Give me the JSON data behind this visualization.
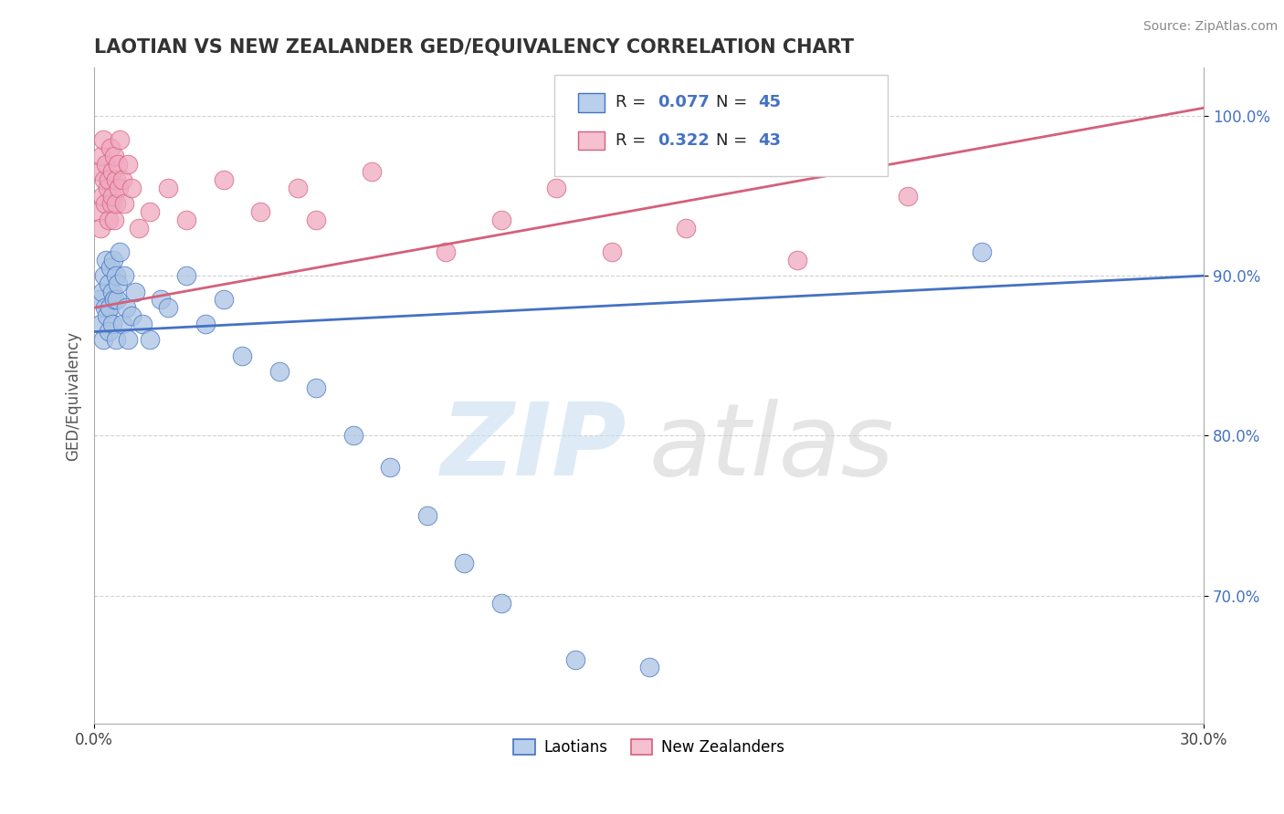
{
  "title": "LAOTIAN VS NEW ZEALANDER GED/EQUIVALENCY CORRELATION CHART",
  "source": "Source: ZipAtlas.com",
  "ylabel": "GED/Equivalency",
  "xlim": [
    0.0,
    30.0
  ],
  "ylim": [
    62.0,
    103.0
  ],
  "yticks": [
    70.0,
    80.0,
    90.0,
    100.0
  ],
  "ytick_labels": [
    "70.0%",
    "80.0%",
    "90.0%",
    "100.0%"
  ],
  "laotian_color": "#aac4e4",
  "new_zealander_color": "#f0a8c0",
  "laotian_line_color": "#4472c4",
  "new_zealander_line_color": "#d4607a",
  "legend_box_lao": "#b8d0ec",
  "legend_box_nz": "#f5c0d0",
  "R_laotian": 0.077,
  "N_laotian": 45,
  "R_nz": 0.322,
  "N_nz": 43,
  "lao_trend_x0": 0.0,
  "lao_trend_y0": 86.5,
  "lao_trend_x1": 30.0,
  "lao_trend_y1": 90.0,
  "nz_trend_x0": 0.0,
  "nz_trend_y0": 88.0,
  "nz_trend_x1": 30.0,
  "nz_trend_y1": 100.5,
  "laotian_x": [
    0.15,
    0.18,
    0.22,
    0.25,
    0.28,
    0.3,
    0.32,
    0.35,
    0.38,
    0.4,
    0.42,
    0.45,
    0.48,
    0.5,
    0.52,
    0.55,
    0.58,
    0.6,
    0.62,
    0.65,
    0.7,
    0.75,
    0.8,
    0.85,
    0.9,
    1.0,
    1.1,
    1.3,
    1.5,
    1.8,
    2.0,
    2.5,
    3.0,
    3.5,
    4.0,
    5.0,
    6.0,
    7.0,
    8.0,
    9.0,
    10.0,
    11.0,
    13.0,
    15.0,
    24.0
  ],
  "laotian_y": [
    88.5,
    87.0,
    89.0,
    86.0,
    90.0,
    88.0,
    91.0,
    87.5,
    89.5,
    86.5,
    88.0,
    90.5,
    87.0,
    89.0,
    91.0,
    88.5,
    86.0,
    90.0,
    88.5,
    89.5,
    91.5,
    87.0,
    90.0,
    88.0,
    86.0,
    87.5,
    89.0,
    87.0,
    86.0,
    88.5,
    88.0,
    90.0,
    87.0,
    88.5,
    85.0,
    84.0,
    83.0,
    80.0,
    78.0,
    75.0,
    72.0,
    69.5,
    66.0,
    65.5,
    91.5
  ],
  "nz_x": [
    0.12,
    0.15,
    0.18,
    0.2,
    0.22,
    0.25,
    0.28,
    0.3,
    0.33,
    0.36,
    0.38,
    0.4,
    0.43,
    0.46,
    0.48,
    0.5,
    0.53,
    0.55,
    0.58,
    0.6,
    0.63,
    0.66,
    0.7,
    0.75,
    0.8,
    0.9,
    1.0,
    1.2,
    1.5,
    2.0,
    2.5,
    3.5,
    4.5,
    5.5,
    6.0,
    7.5,
    9.5,
    11.0,
    12.5,
    14.0,
    16.0,
    19.0,
    22.0
  ],
  "nz_y": [
    94.0,
    96.5,
    93.0,
    97.5,
    95.0,
    98.5,
    96.0,
    94.5,
    97.0,
    95.5,
    93.5,
    96.0,
    98.0,
    94.5,
    96.5,
    95.0,
    97.5,
    93.5,
    96.0,
    94.5,
    97.0,
    95.5,
    98.5,
    96.0,
    94.5,
    97.0,
    95.5,
    93.0,
    94.0,
    95.5,
    93.5,
    96.0,
    94.0,
    95.5,
    93.5,
    96.5,
    91.5,
    93.5,
    95.5,
    91.5,
    93.0,
    91.0,
    95.0
  ]
}
